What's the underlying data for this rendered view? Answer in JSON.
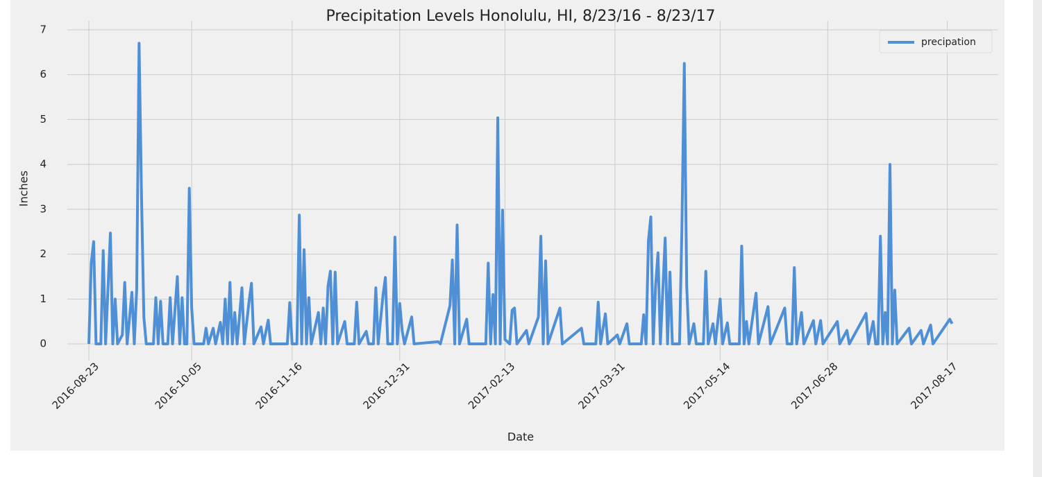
{
  "chart_data": {
    "type": "line",
    "title": "Precipitation Levels Honolulu, HI, 8/23/16 - 8/23/17",
    "x_label": "Date",
    "y_label": "Inches",
    "legend": "upper right",
    "grid": true,
    "xlim": [
      "2016-08-14",
      "2017-09-07"
    ],
    "ylim": [
      -0.37,
      7.2
    ],
    "xticks": [
      "2016-08-23",
      "2016-10-05",
      "2016-11-16",
      "2016-12-31",
      "2017-02-13",
      "2017-03-31",
      "2017-05-14",
      "2017-06-28",
      "2017-08-17"
    ],
    "yticks": [
      0,
      1,
      2,
      3,
      4,
      5,
      6,
      7
    ],
    "x": [
      "2016-08-23",
      "2016-08-24",
      "2016-08-25",
      "2016-08-26",
      "2016-08-28",
      "2016-08-29",
      "2016-08-30",
      "2016-09-01",
      "2016-09-02",
      "2016-09-03",
      "2016-09-04",
      "2016-09-06",
      "2016-09-07",
      "2016-09-08",
      "2016-09-10",
      "2016-09-11",
      "2016-09-12",
      "2016-09-13",
      "2016-09-14",
      "2016-09-15",
      "2016-09-16",
      "2016-09-19",
      "2016-09-20",
      "2016-09-21",
      "2016-09-22",
      "2016-09-23",
      "2016-09-25",
      "2016-09-26",
      "2016-09-27",
      "2016-09-29",
      "2016-09-30",
      "2016-10-01",
      "2016-10-02",
      "2016-10-03",
      "2016-10-04",
      "2016-10-05",
      "2016-10-06",
      "2016-10-10",
      "2016-10-11",
      "2016-10-12",
      "2016-10-14",
      "2016-10-15",
      "2016-10-17",
      "2016-10-18",
      "2016-10-19",
      "2016-10-20",
      "2016-10-21",
      "2016-10-22",
      "2016-10-23",
      "2016-10-24",
      "2016-10-26",
      "2016-10-27",
      "2016-10-29",
      "2016-10-30",
      "2016-10-31",
      "2016-11-03",
      "2016-11-04",
      "2016-11-06",
      "2016-11-07",
      "2016-11-14",
      "2016-11-15",
      "2016-11-16",
      "2016-11-18",
      "2016-11-19",
      "2016-11-20",
      "2016-11-21",
      "2016-11-22",
      "2016-11-23",
      "2016-11-24",
      "2016-11-27",
      "2016-11-28",
      "2016-11-29",
      "2016-11-30",
      "2016-12-01",
      "2016-12-02",
      "2016-12-03",
      "2016-12-04",
      "2016-12-05",
      "2016-12-08",
      "2016-12-09",
      "2016-12-12",
      "2016-12-13",
      "2016-12-14",
      "2016-12-17",
      "2016-12-18",
      "2016-12-20",
      "2016-12-21",
      "2016-12-22",
      "2016-12-24",
      "2016-12-25",
      "2016-12-26",
      "2016-12-28",
      "2016-12-29",
      "2016-12-30",
      "2016-12-31",
      "2017-01-01",
      "2017-01-02",
      "2017-01-05",
      "2017-01-06",
      "2017-01-16",
      "2017-01-17",
      "2017-01-21",
      "2017-01-22",
      "2017-01-23",
      "2017-01-24",
      "2017-01-25",
      "2017-01-28",
      "2017-01-29",
      "2017-02-05",
      "2017-02-06",
      "2017-02-07",
      "2017-02-08",
      "2017-02-09",
      "2017-02-10",
      "2017-02-11",
      "2017-02-12",
      "2017-02-13",
      "2017-02-15",
      "2017-02-16",
      "2017-02-17",
      "2017-02-18",
      "2017-02-22",
      "2017-02-23",
      "2017-02-27",
      "2017-02-28",
      "2017-03-01",
      "2017-03-02",
      "2017-03-03",
      "2017-03-08",
      "2017-03-09",
      "2017-03-17",
      "2017-03-18",
      "2017-03-23",
      "2017-03-24",
      "2017-03-25",
      "2017-03-27",
      "2017-03-28",
      "2017-04-01",
      "2017-04-02",
      "2017-04-05",
      "2017-04-06",
      "2017-04-11",
      "2017-04-12",
      "2017-04-13",
      "2017-04-14",
      "2017-04-15",
      "2017-04-16",
      "2017-04-17",
      "2017-04-18",
      "2017-04-19",
      "2017-04-21",
      "2017-04-22",
      "2017-04-23",
      "2017-04-24",
      "2017-04-27",
      "2017-04-28",
      "2017-04-29",
      "2017-04-30",
      "2017-05-01",
      "2017-05-03",
      "2017-05-04",
      "2017-05-07",
      "2017-05-08",
      "2017-05-09",
      "2017-05-11",
      "2017-05-12",
      "2017-05-14",
      "2017-05-15",
      "2017-05-17",
      "2017-05-18",
      "2017-05-22",
      "2017-05-23",
      "2017-05-24",
      "2017-05-25",
      "2017-05-26",
      "2017-05-29",
      "2017-05-30",
      "2017-06-03",
      "2017-06-04",
      "2017-06-10",
      "2017-06-11",
      "2017-06-13",
      "2017-06-14",
      "2017-06-15",
      "2017-06-17",
      "2017-06-18",
      "2017-06-22",
      "2017-06-23",
      "2017-06-25",
      "2017-06-26",
      "2017-07-02",
      "2017-07-03",
      "2017-07-06",
      "2017-07-07",
      "2017-07-14",
      "2017-07-15",
      "2017-07-17",
      "2017-07-18",
      "2017-07-19",
      "2017-07-20",
      "2017-07-21",
      "2017-07-22",
      "2017-07-23",
      "2017-07-24",
      "2017-07-25",
      "2017-07-26",
      "2017-07-27",
      "2017-08-01",
      "2017-08-02",
      "2017-08-06",
      "2017-08-07",
      "2017-08-10",
      "2017-08-11",
      "2017-08-18",
      "2017-08-19"
    ],
    "series": [
      {
        "name": "precipation",
        "color": "#4f8fd6",
        "values": [
          0,
          1.8,
          2.28,
          0,
          0,
          2.08,
          0,
          2.47,
          0,
          1.0,
          0,
          0.2,
          1.37,
          0,
          1.15,
          0,
          1.22,
          6.7,
          3.35,
          0.6,
          0,
          0,
          1.03,
          0,
          0.95,
          0,
          0,
          1.03,
          0,
          1.5,
          0,
          1.03,
          0,
          0,
          3.47,
          0.8,
          0,
          0,
          0.35,
          0,
          0.35,
          0,
          0.48,
          0,
          1.0,
          0,
          1.37,
          0,
          0.7,
          0,
          1.25,
          0,
          0.95,
          1.35,
          0,
          0.38,
          0,
          0.53,
          0,
          0,
          0.92,
          0,
          0,
          2.87,
          0,
          2.1,
          0,
          1.03,
          0,
          0.7,
          0,
          0.8,
          0,
          1.28,
          1.62,
          0,
          1.6,
          0,
          0.5,
          0,
          0,
          0.93,
          0,
          0.28,
          0,
          0,
          1.25,
          0,
          1.08,
          1.48,
          0,
          0,
          2.38,
          0,
          0.9,
          0.3,
          0,
          0.6,
          0,
          0.05,
          0,
          0.85,
          1.87,
          0,
          2.65,
          0,
          0.55,
          0,
          0,
          1.8,
          0,
          1.1,
          0,
          5.04,
          0,
          2.98,
          0.1,
          0,
          0.75,
          0.8,
          0,
          0.3,
          0,
          0.6,
          2.4,
          0,
          1.85,
          0,
          0.8,
          0,
          0.35,
          0,
          0,
          0.93,
          0,
          0.67,
          0,
          0.2,
          0,
          0.45,
          0,
          0,
          0.65,
          0,
          2.3,
          2.83,
          0,
          1.3,
          2.03,
          0,
          2.36,
          0,
          1.6,
          0,
          0,
          2.6,
          6.25,
          1.3,
          0,
          0.45,
          0,
          0,
          1.62,
          0,
          0.45,
          0,
          1.0,
          0,
          0.47,
          0,
          0,
          2.18,
          0,
          0.5,
          0,
          1.13,
          0,
          0.83,
          0,
          0.8,
          0,
          0,
          1.7,
          0,
          0.7,
          0,
          0.52,
          0,
          0.52,
          0,
          0.5,
          0,
          0.3,
          0,
          0.68,
          0,
          0.5,
          0,
          0,
          2.4,
          0,
          0.7,
          0,
          4.0,
          0,
          1.2,
          0,
          0.35,
          0,
          0.3,
          0,
          0.42,
          0,
          0.55,
          0.45
        ]
      }
    ]
  }
}
